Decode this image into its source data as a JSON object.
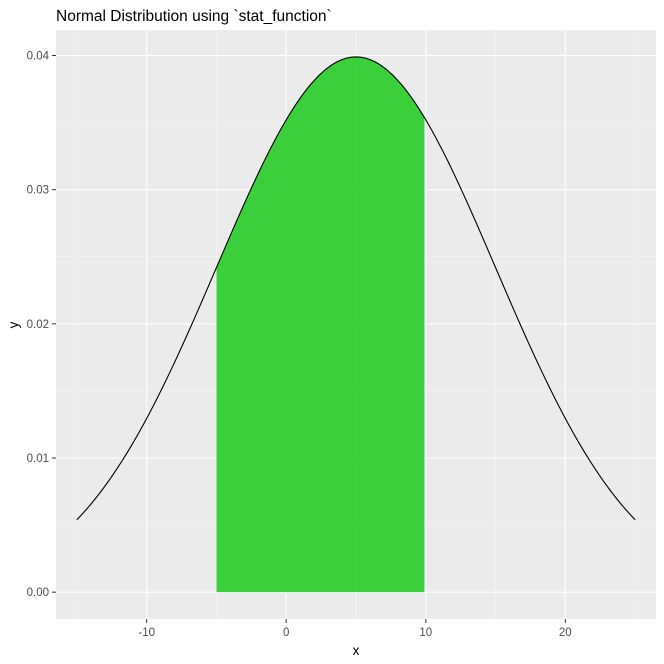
{
  "chart_data": {
    "type": "area",
    "title": "Normal Distribution using `stat_function`",
    "xlabel": "x",
    "ylabel": "y",
    "xlim": [
      -16.5,
      26.5
    ],
    "ylim": [
      -0.002,
      0.0419
    ],
    "x_ticks": [
      -10,
      0,
      10,
      20
    ],
    "y_ticks": [
      0.0,
      0.01,
      0.02,
      0.03,
      0.04
    ],
    "x_tick_labels": [
      "-10",
      "0",
      "10",
      "20"
    ],
    "y_tick_labels": [
      "0.00",
      "0.01",
      "0.02",
      "0.03",
      "0.04"
    ],
    "grid": true,
    "legend": "none",
    "series": [
      {
        "kind": "line",
        "function": "normal_density",
        "mean": 5,
        "sd": 10,
        "x_range": [
          -15,
          25
        ],
        "color": "#000000",
        "x": [
          -15,
          -12.5,
          -10,
          -7.5,
          -5,
          -2.5,
          0,
          2.5,
          5,
          7.5,
          10,
          12.5,
          15,
          17.5,
          20,
          22.5,
          25
        ],
        "y": [
          0.0054,
          0.0086,
          0.013,
          0.0183,
          0.0242,
          0.0301,
          0.0352,
          0.0387,
          0.0399,
          0.0387,
          0.0352,
          0.0301,
          0.0242,
          0.0183,
          0.013,
          0.0086,
          0.0054
        ]
      },
      {
        "kind": "area",
        "function": "normal_density",
        "mean": 5,
        "sd": 10,
        "x_range": [
          -5,
          9.9
        ],
        "color": "#22cc22",
        "x": [
          -5,
          -2.5,
          0,
          2.5,
          5,
          7.5,
          9.9
        ],
        "y": [
          0.0242,
          0.0301,
          0.0352,
          0.0387,
          0.0399,
          0.0387,
          0.0354
        ]
      }
    ],
    "colors": {
      "panel_background": "#ebebeb",
      "grid_major": "#ffffff",
      "fill_area": "#22cc22",
      "curve": "#000000"
    }
  }
}
